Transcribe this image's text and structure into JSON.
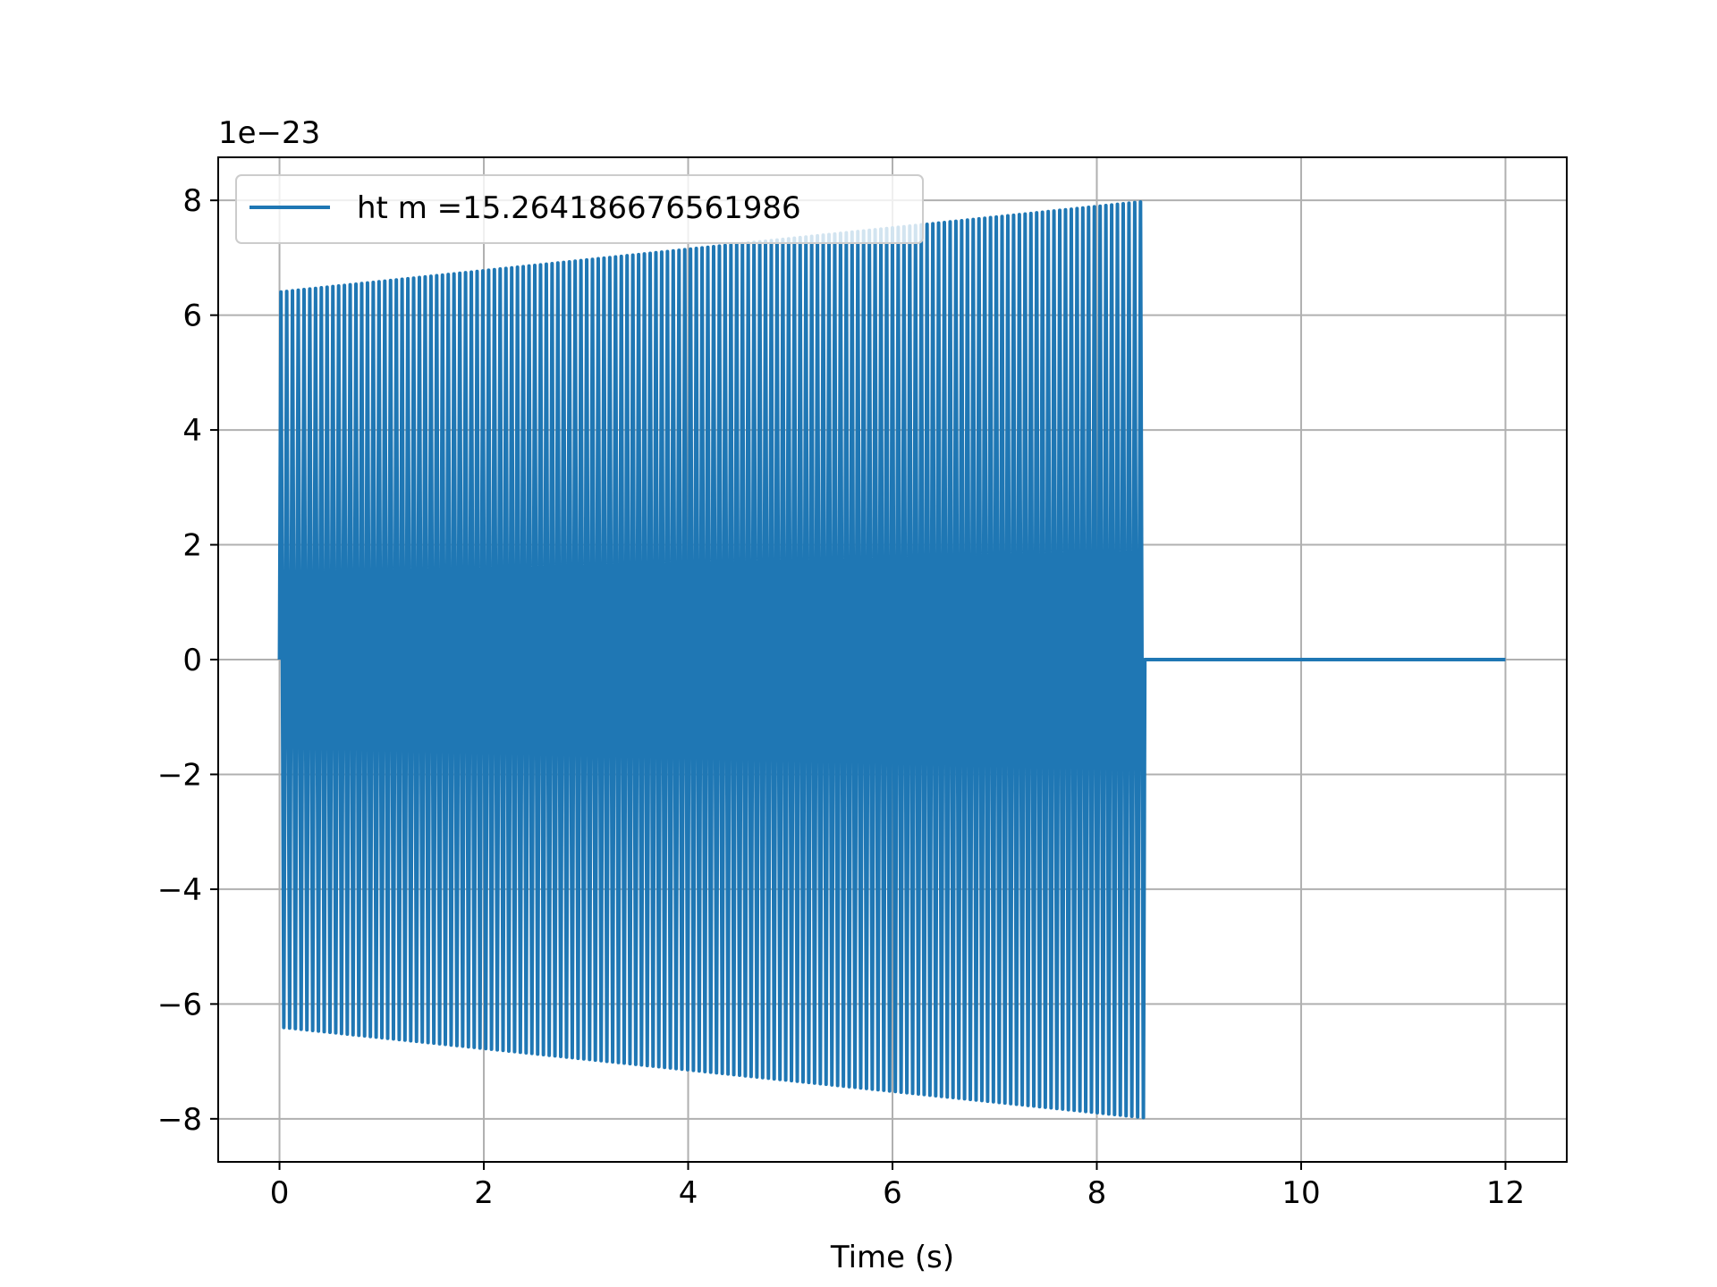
{
  "chart_data": {
    "type": "line",
    "title": "",
    "xlabel": "Time (s)",
    "ylabel": "",
    "y_offset_text": "1e−23",
    "xlim": [
      -0.6,
      12.6
    ],
    "ylim": [
      -8.75,
      8.75
    ],
    "x_ticks": [
      0,
      2,
      4,
      6,
      8,
      10,
      12
    ],
    "x_tick_labels": [
      "0",
      "2",
      "4",
      "6",
      "8",
      "10",
      "12"
    ],
    "y_ticks": [
      -8,
      -6,
      -4,
      -2,
      0,
      2,
      4,
      6,
      8
    ],
    "y_tick_labels": [
      "−8",
      "−6",
      "−4",
      "−2",
      "0",
      "2",
      "4",
      "6",
      "8"
    ],
    "grid": true,
    "legend_position": "upper-left",
    "series": [
      {
        "name": "ht m =15.264186676561986",
        "color": "#1f77b4",
        "x_start": 0,
        "x_end": 12,
        "signal_end": 8.47,
        "amplitude_start": 6.4,
        "amplitude_end": 7.98,
        "cycles": 150,
        "tail_value": 0
      }
    ]
  }
}
